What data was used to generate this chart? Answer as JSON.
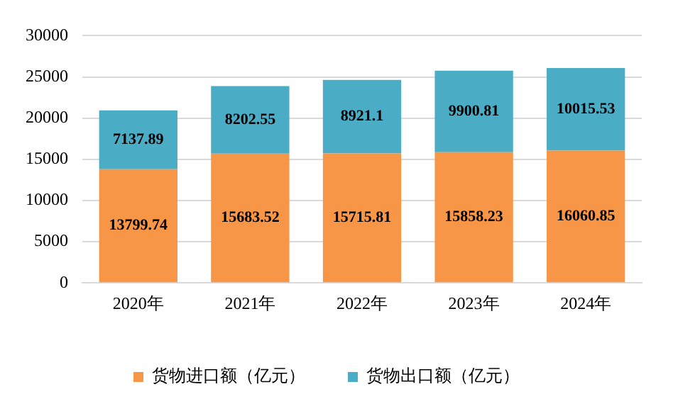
{
  "chart_data": {
    "type": "bar",
    "stacked": true,
    "categories": [
      "2020年",
      "2021年",
      "2022年",
      "2023年",
      "2024年"
    ],
    "series": [
      {
        "name": "货物进口额（亿元）",
        "color": "#f79646",
        "values": [
          13799.74,
          15683.52,
          15715.81,
          15858.23,
          16060.85
        ]
      },
      {
        "name": "货物出口额（亿元）",
        "color": "#4bacc6",
        "values": [
          7137.89,
          8202.55,
          8921.1,
          9900.81,
          10015.53
        ]
      }
    ],
    "ylim": [
      0,
      30000
    ],
    "yticks": [
      0,
      5000,
      10000,
      15000,
      20000,
      25000,
      30000
    ],
    "grid": "y",
    "legend": "bottom",
    "data_labels": true
  }
}
